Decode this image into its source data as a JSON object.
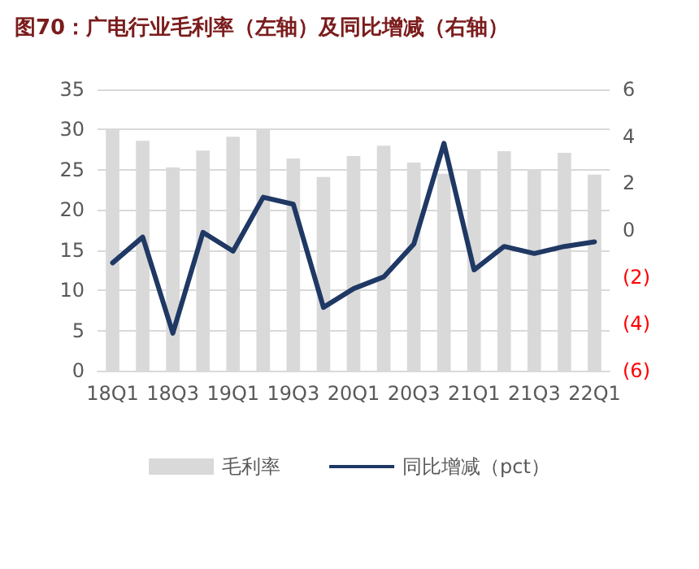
{
  "chart_data": {
    "type": "bar",
    "title": "图70：广电行业毛利率（左轴）及同比增减（右轴）",
    "categories": [
      "18Q1",
      null,
      "18Q3",
      null,
      "19Q1",
      null,
      "19Q3",
      null,
      "20Q1",
      null,
      "20Q3",
      null,
      "21Q1",
      null,
      "21Q3",
      null,
      "22Q1"
    ],
    "series": [
      {
        "name": "毛利率",
        "color": "#d9d9d9",
        "values": [
          30,
          28.6,
          25.3,
          27.4,
          29.1,
          30,
          26.4,
          24.1,
          26.7,
          28.0,
          25.9,
          24.5,
          24.9,
          27.3,
          24.9,
          27.1,
          24.4
        ]
      },
      {
        "name": "同比增减（pct）",
        "type": "line",
        "axis": "y2",
        "color": "#1f3864",
        "values": [
          -1.4,
          -0.3,
          -4.4,
          -0.1,
          -0.9,
          1.4,
          1.1,
          -3.3,
          -2.5,
          -2.0,
          -0.6,
          3.7,
          -1.7,
          -0.7,
          -1.0,
          -0.7,
          -0.5
        ]
      }
    ],
    "ylim": [
      0,
      35
    ],
    "yticks": [
      0,
      5,
      10,
      15,
      20,
      25,
      30,
      35
    ],
    "y2lim": [
      -6,
      6
    ],
    "y2ticks": [
      {
        "value": -6,
        "label": "(6)"
      },
      {
        "value": -4,
        "label": "(4)"
      },
      {
        "value": -2,
        "label": "(2)"
      },
      0,
      2,
      4,
      6
    ],
    "grid": "y",
    "legend": "bottom",
    "marker": "none",
    "line_style": "solid"
  }
}
